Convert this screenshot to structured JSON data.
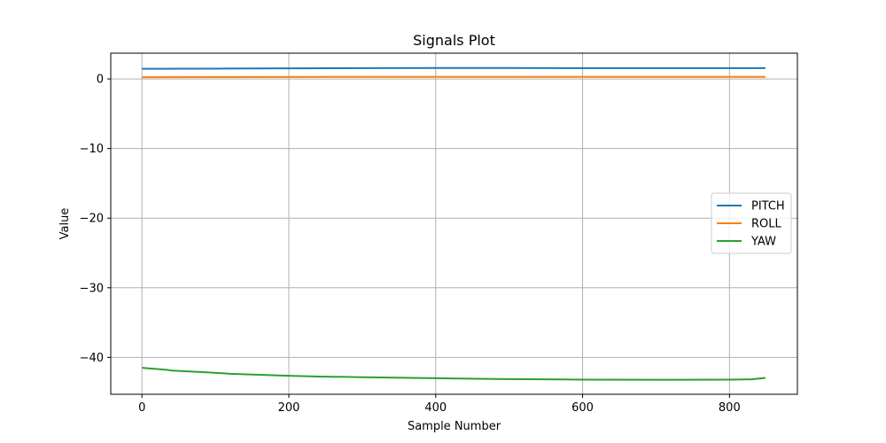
{
  "chart_data": {
    "type": "line",
    "title": "Signals Plot",
    "xlabel": "Sample Number",
    "ylabel": "Value",
    "xlim": [
      -42.5,
      892.5
    ],
    "ylim": [
      -45.3,
      3.7
    ],
    "xticks": [
      0,
      200,
      400,
      600,
      800
    ],
    "yticks": [
      0,
      -10,
      -20,
      -30,
      -40
    ],
    "grid": true,
    "legend_position": "center-right",
    "series": [
      {
        "name": "PITCH",
        "color": "#1f77b4",
        "x": [
          0,
          100,
          200,
          300,
          400,
          500,
          600,
          700,
          800,
          849
        ],
        "y": [
          1.45,
          1.48,
          1.52,
          1.55,
          1.56,
          1.56,
          1.55,
          1.55,
          1.55,
          1.55
        ]
      },
      {
        "name": "ROLL",
        "color": "#ff7f0e",
        "x": [
          0,
          100,
          200,
          300,
          400,
          500,
          600,
          700,
          800,
          849
        ],
        "y": [
          0.25,
          0.26,
          0.28,
          0.3,
          0.3,
          0.3,
          0.3,
          0.3,
          0.3,
          0.3
        ]
      },
      {
        "name": "YAW",
        "color": "#2ca02c",
        "x": [
          0,
          35,
          40,
          80,
          120,
          160,
          200,
          240,
          300,
          400,
          480,
          570,
          600,
          700,
          800,
          830,
          849
        ],
        "y": [
          -41.5,
          -41.8,
          -41.9,
          -42.1,
          -42.35,
          -42.5,
          -42.65,
          -42.75,
          -42.85,
          -43.0,
          -43.1,
          -43.17,
          -43.2,
          -43.22,
          -43.2,
          -43.15,
          -42.95
        ]
      }
    ]
  }
}
